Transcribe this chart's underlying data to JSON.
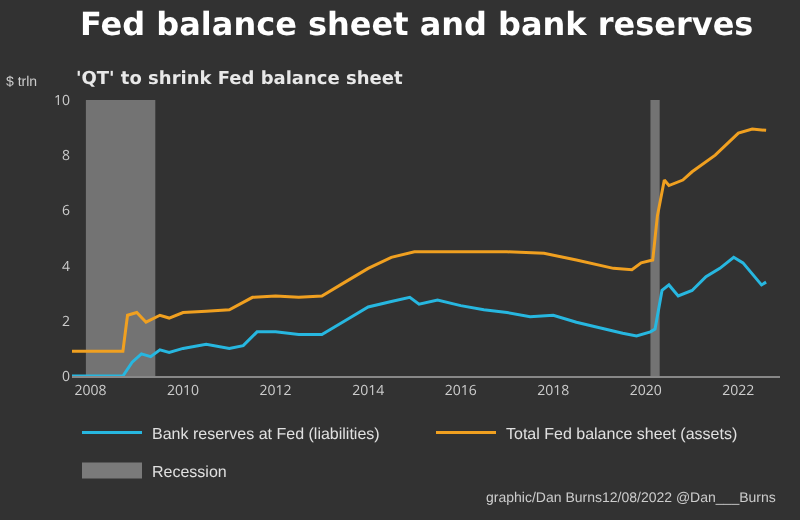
{
  "chart_data": {
    "type": "line",
    "title": "Fed balance sheet and bank reserves",
    "subtitle": "'QT' to shrink Fed balance sheet",
    "ylabel": "$ trln",
    "xlim": [
      2007.6,
      2022.9
    ],
    "xticks": [
      2008,
      2010,
      2012,
      2014,
      2016,
      2018,
      2020,
      2022
    ],
    "ylim": [
      0,
      10
    ],
    "yticks": [
      0,
      2,
      4,
      6,
      8,
      10
    ],
    "grid": false,
    "legend": "bottom",
    "series": [
      {
        "name": "Bank reserves at Fed (liabilities)",
        "color": "#27b7e0",
        "x": [
          2007.6,
          2008.7,
          2008.9,
          2009.1,
          2009.3,
          2009.5,
          2009.7,
          2010,
          2010.5,
          2011,
          2011.3,
          2011.6,
          2012,
          2012.5,
          2013,
          2013.5,
          2014,
          2014.5,
          2014.9,
          2015.1,
          2015.5,
          2016,
          2016.5,
          2017,
          2017.5,
          2018,
          2018.5,
          2019,
          2019.5,
          2019.8,
          2020.1,
          2020.2,
          2020.35,
          2020.5,
          2020.7,
          2021,
          2021.3,
          2021.6,
          2021.9,
          2022.1,
          2022.4,
          2022.5,
          2022.6
        ],
        "values": [
          0,
          0,
          0.5,
          0.8,
          0.7,
          0.95,
          0.85,
          1.0,
          1.15,
          1.0,
          1.1,
          1.6,
          1.6,
          1.5,
          1.5,
          2.0,
          2.5,
          2.7,
          2.85,
          2.6,
          2.75,
          2.55,
          2.4,
          2.3,
          2.15,
          2.2,
          1.95,
          1.75,
          1.55,
          1.45,
          1.6,
          1.7,
          3.1,
          3.3,
          2.9,
          3.1,
          3.6,
          3.9,
          4.3,
          4.1,
          3.5,
          3.3,
          3.4
        ]
      },
      {
        "name": "Total Fed balance sheet (assets)",
        "color": "#f0a020",
        "x": [
          2007.6,
          2008.7,
          2008.8,
          2009.0,
          2009.2,
          2009.5,
          2009.7,
          2010,
          2010.5,
          2011,
          2011.5,
          2012,
          2012.5,
          2013,
          2013.5,
          2014,
          2014.5,
          2015,
          2016,
          2017,
          2017.8,
          2018.5,
          2019.3,
          2019.7,
          2019.9,
          2020.15,
          2020.25,
          2020.4,
          2020.5,
          2020.8,
          2021,
          2021.5,
          2022,
          2022.3,
          2022.6
        ],
        "values": [
          0.9,
          0.9,
          2.2,
          2.3,
          1.95,
          2.2,
          2.1,
          2.3,
          2.35,
          2.4,
          2.85,
          2.9,
          2.85,
          2.9,
          3.4,
          3.9,
          4.3,
          4.5,
          4.5,
          4.5,
          4.45,
          4.2,
          3.9,
          3.85,
          4.1,
          4.2,
          5.8,
          7.1,
          6.9,
          7.1,
          7.4,
          8.0,
          8.8,
          8.95,
          8.9
        ]
      }
    ],
    "bands": [
      {
        "axis": "x",
        "from": 2007.9,
        "to": 2009.4,
        "label": "Recession",
        "color": "#7a7a7a"
      },
      {
        "axis": "x",
        "from": 2020.1,
        "to": 2020.3,
        "color": "#7a7a7a"
      }
    ],
    "annotations": [
      "graphic/Dan Burns12/08/2022 @Dan___Burns"
    ]
  }
}
